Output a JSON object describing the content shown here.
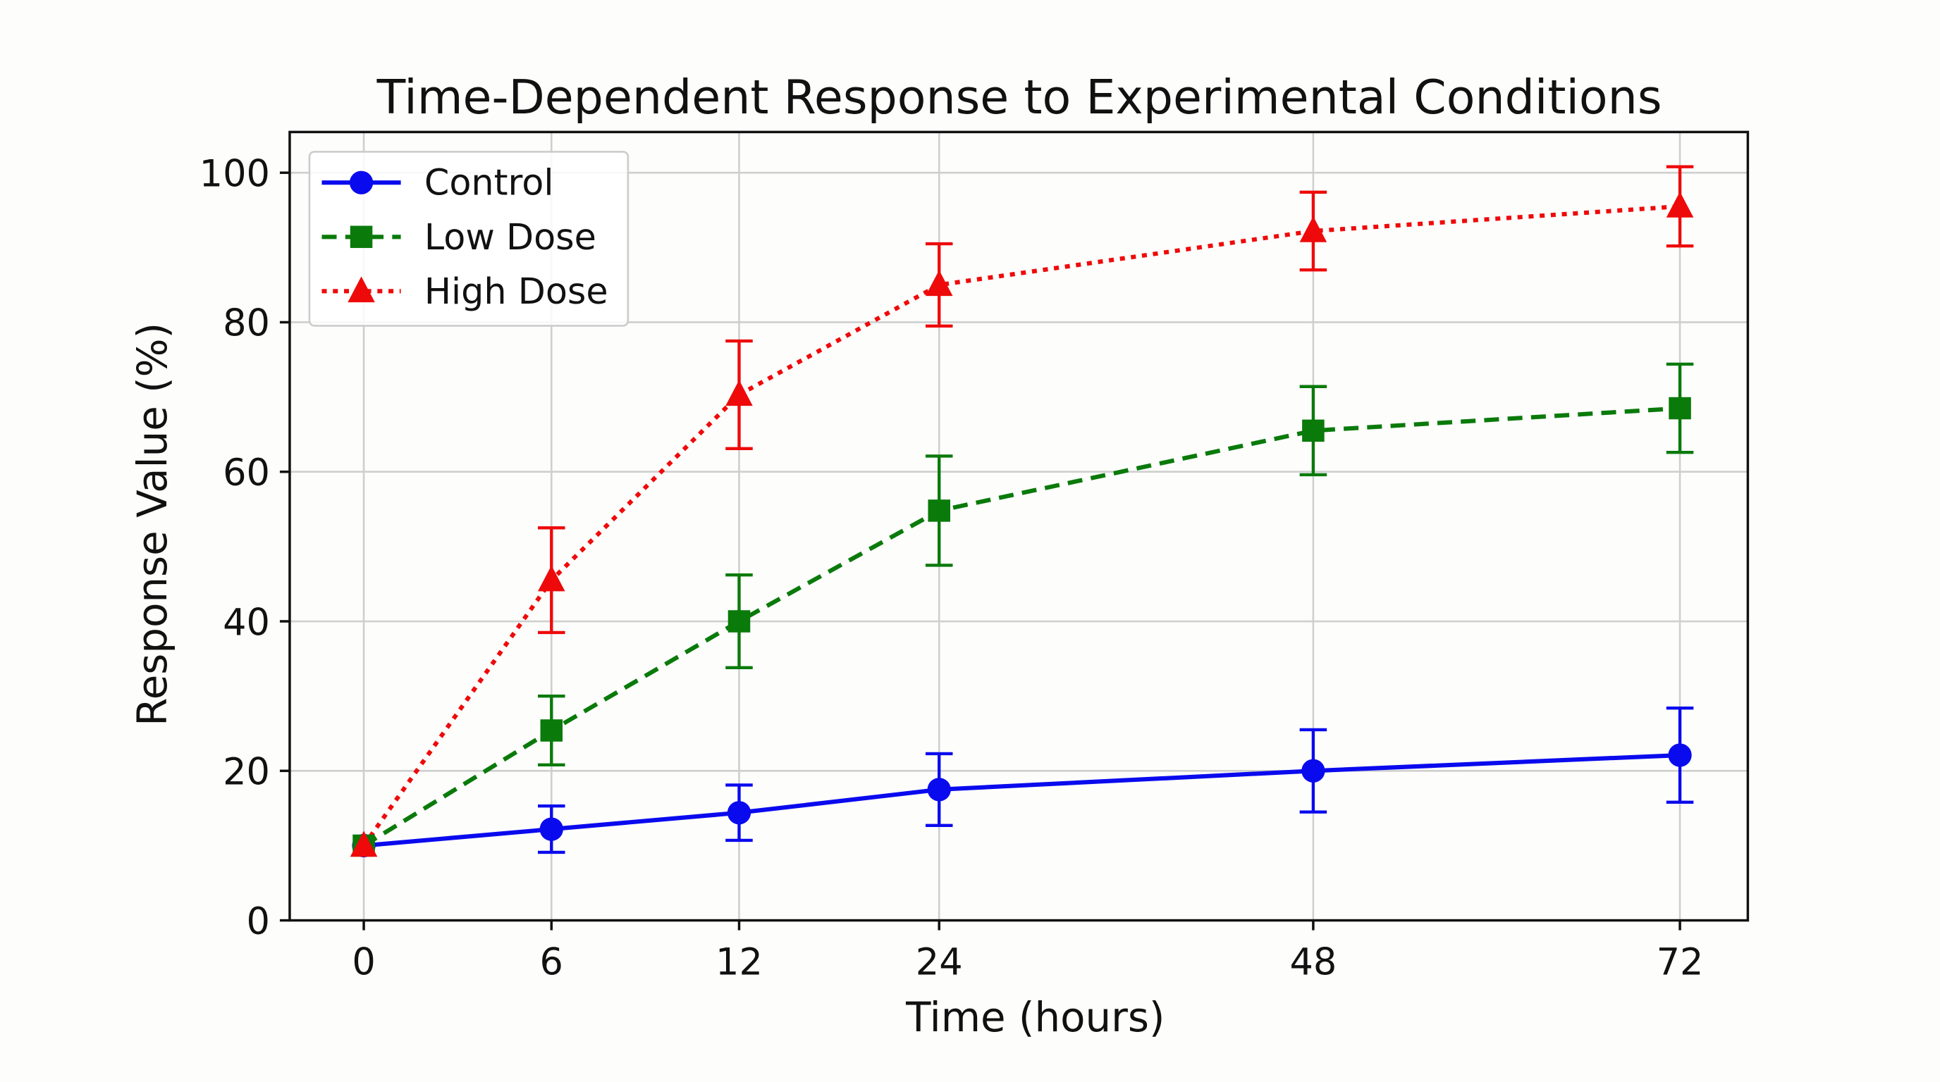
{
  "chart_data": {
    "type": "line",
    "title": "Time-Dependent Response to Experimental Conditions",
    "xlabel": "Time (hours)",
    "ylabel": "Response Value (%)",
    "categories": [
      "0",
      "6",
      "12",
      "24",
      "48",
      "72"
    ],
    "ylim": [
      0,
      105
    ],
    "yticks": [
      "0",
      "20",
      "40",
      "60",
      "80",
      "100"
    ],
    "grid": true,
    "legend_position": "top-left",
    "series": [
      {
        "name": "Control",
        "color": "#0a0aee",
        "marker": "circle",
        "linestyle": "solid",
        "values": [
          10,
          12.2,
          14.4,
          17.5,
          20,
          22.1
        ],
        "errors": [
          0,
          3.1,
          3.7,
          4.8,
          5.5,
          6.3
        ]
      },
      {
        "name": "Low Dose",
        "color": "#0a7a0a",
        "marker": "square",
        "linestyle": "dashed",
        "values": [
          10,
          25.4,
          40,
          54.8,
          65.5,
          68.5
        ],
        "errors": [
          0,
          4.6,
          6.2,
          7.3,
          5.9,
          5.9
        ]
      },
      {
        "name": "High Dose",
        "color": "#ee0a0a",
        "marker": "triangle",
        "linestyle": "dotted",
        "values": [
          10,
          45.5,
          70.3,
          85,
          92.2,
          95.5
        ],
        "errors": [
          0,
          7,
          7.2,
          5.5,
          5.2,
          5.3
        ]
      }
    ]
  }
}
